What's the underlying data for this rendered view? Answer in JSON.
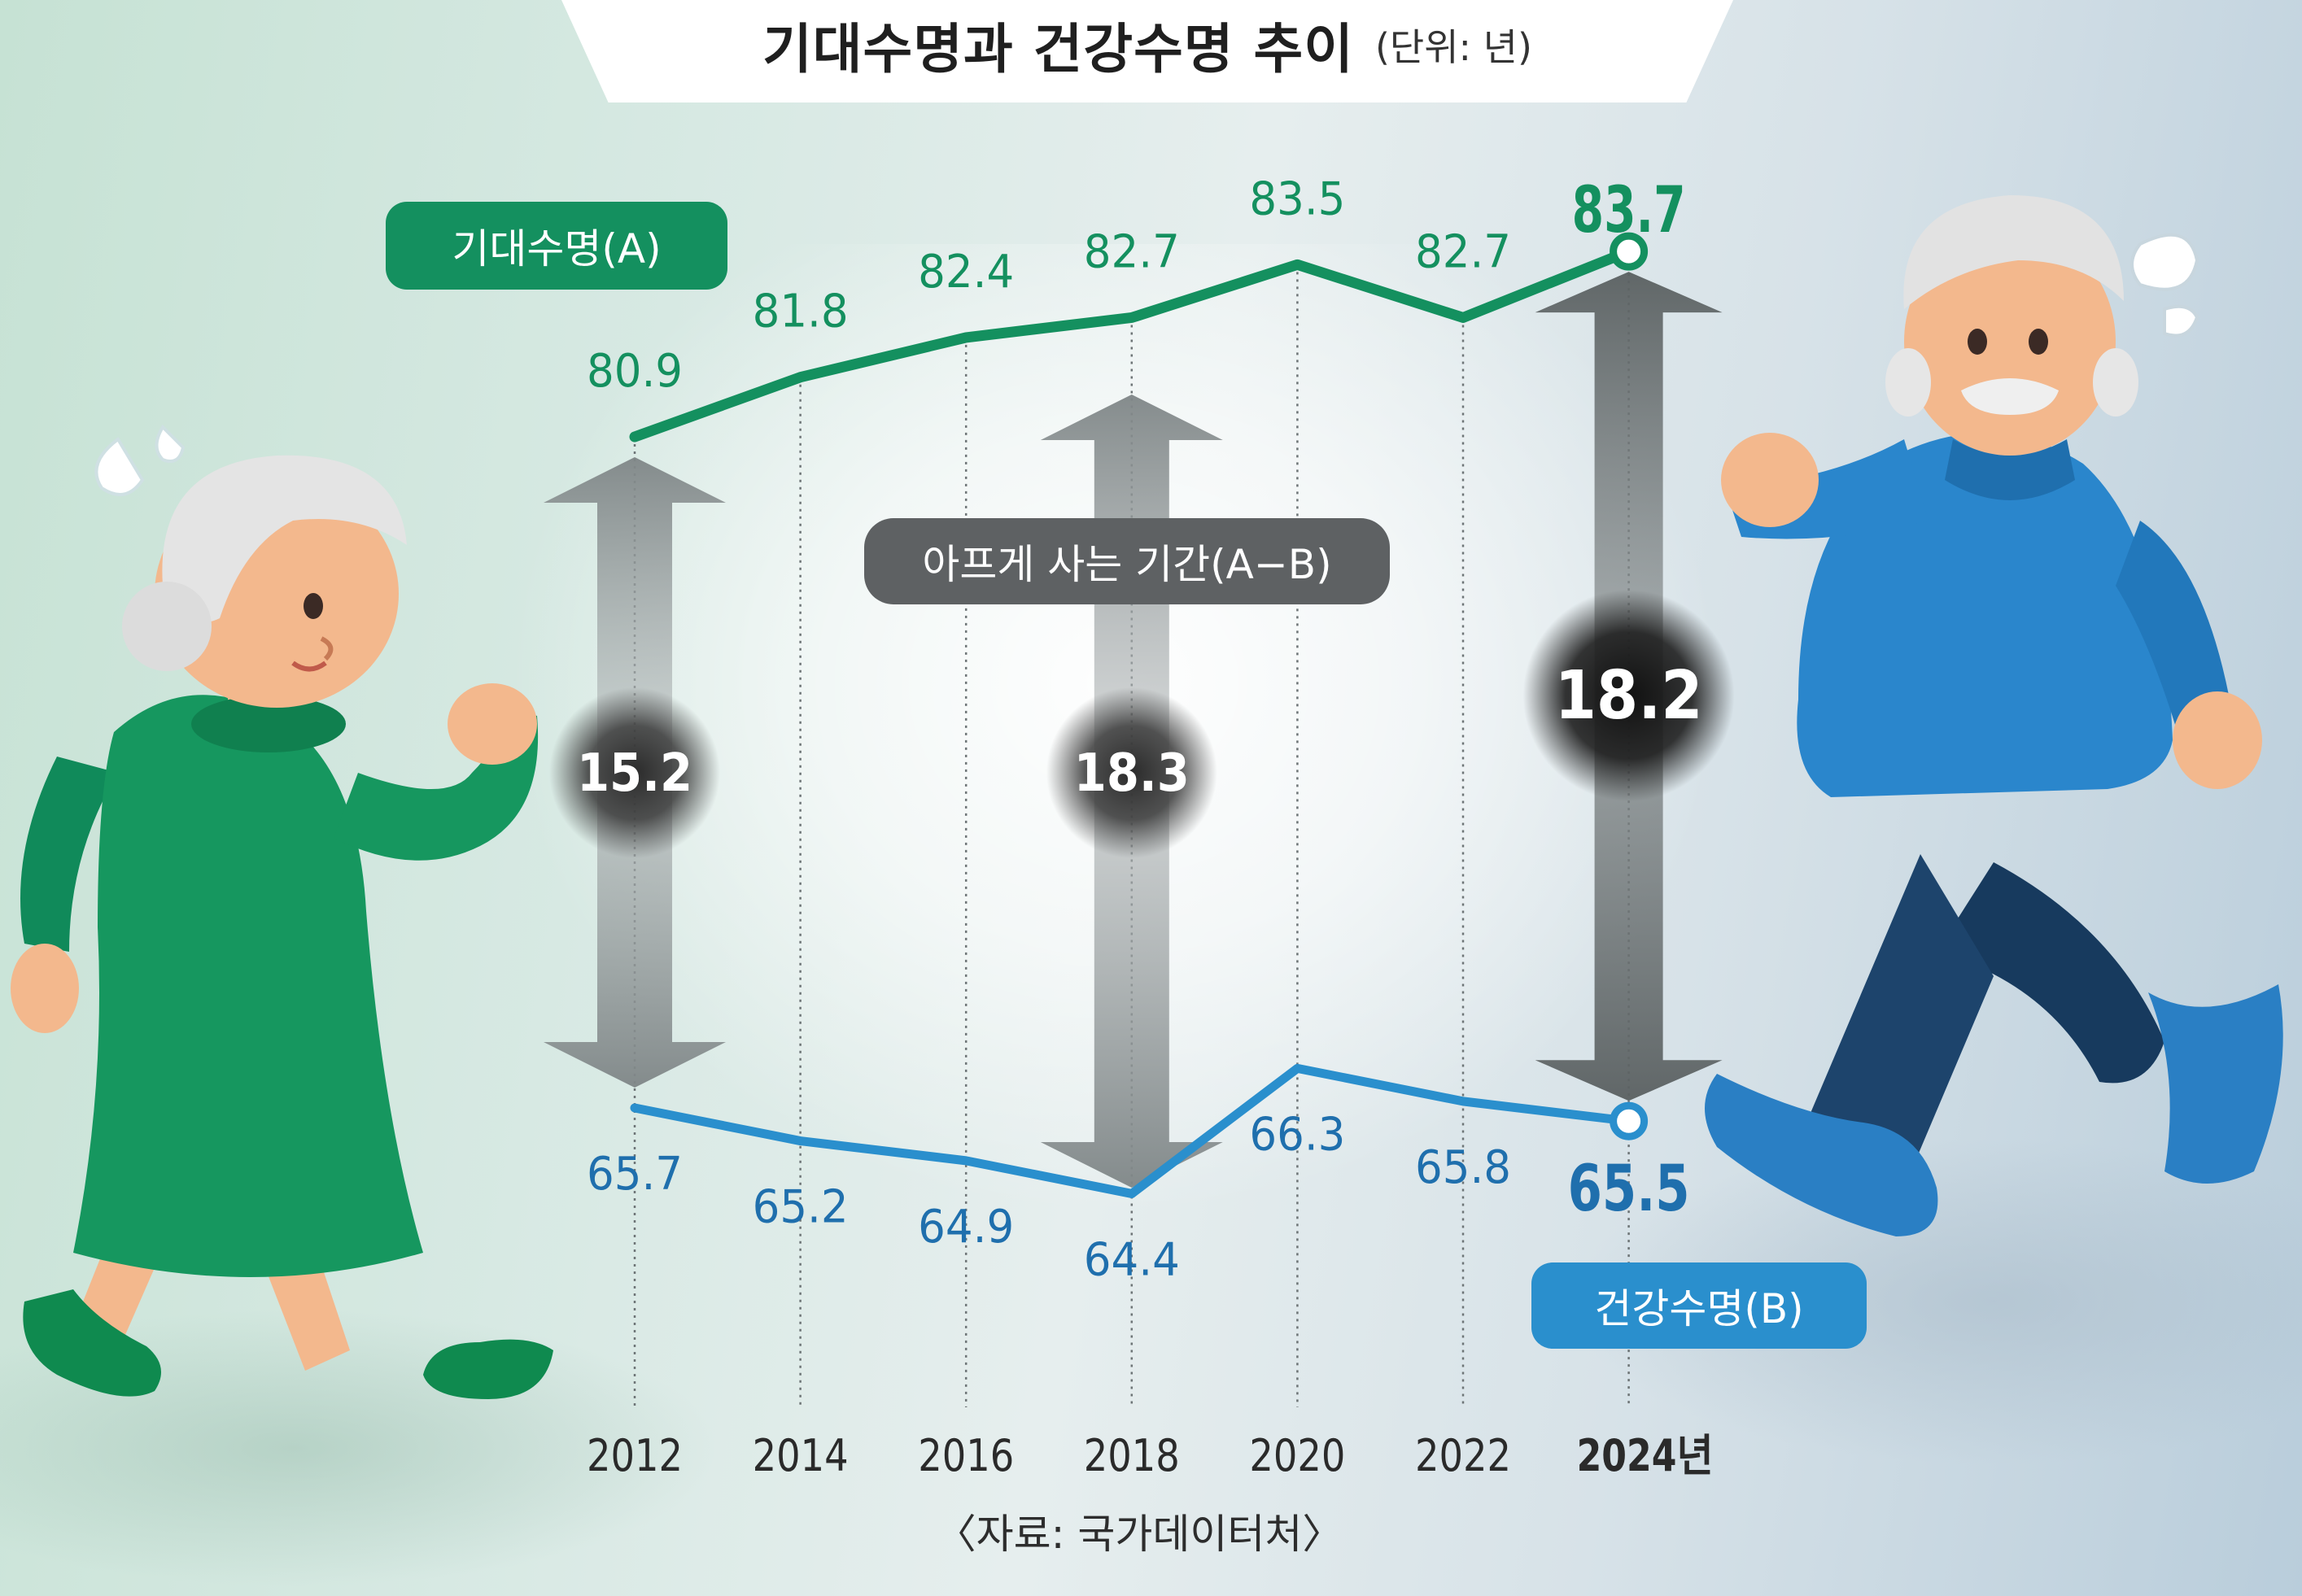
{
  "title": {
    "main": "기대수명과 건강수명 추이",
    "unit": "(단위: 년)"
  },
  "legend": {
    "a_label": "기대수명(A)",
    "gap_label": "아프게 사는 기간(A−B)",
    "b_label": "건강수명(B)"
  },
  "source": "〈자료: 국가데이터처〉",
  "colors": {
    "expected": "#14905f",
    "healthy": "#2a8fcd",
    "gap_pill": "#5e6163",
    "arrow": "#8e9596"
  },
  "chart_data": {
    "type": "line",
    "x_tick_labels": [
      "2012",
      "2014",
      "2016",
      "2018",
      "2020",
      "2022",
      "2024년"
    ],
    "x": [
      2012,
      2014,
      2016,
      2018,
      2020,
      2022,
      2024
    ],
    "series": [
      {
        "name": "기대수명(A)",
        "values": [
          80.9,
          81.8,
          82.4,
          82.7,
          83.5,
          82.7,
          83.7
        ],
        "labels": [
          "80.9",
          "81.8",
          "82.4",
          "82.7",
          "83.5",
          "82.7",
          "83.7"
        ]
      },
      {
        "name": "건강수명(B)",
        "values": [
          65.7,
          65.2,
          64.9,
          64.4,
          66.3,
          65.8,
          65.5
        ],
        "labels": [
          "65.7",
          "65.2",
          "64.9",
          "64.4",
          "66.3",
          "65.8",
          "65.5"
        ]
      }
    ],
    "gaps": [
      {
        "x": 2012,
        "value": 15.2,
        "label": "15.2"
      },
      {
        "x": 2018,
        "value": 18.3,
        "label": "18.3"
      },
      {
        "x": 2024,
        "value": 18.2,
        "label": "18.2"
      }
    ],
    "highlight_x": 2024,
    "grid": "vertical dotted lines at each year"
  }
}
